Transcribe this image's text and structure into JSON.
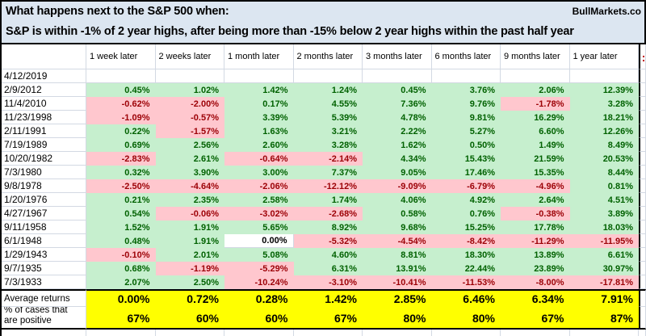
{
  "header": {
    "line1": "What happens next to the S&P 500 when:",
    "line2": "S&P is within -1% of 2 year highs, after being more than -15% below 2 year highs within the past half year",
    "brand": "BullMarkets.co"
  },
  "table": {
    "columns": [
      "1 week later",
      "2 weeks later",
      "1 month later",
      "2 months later",
      "3 months later",
      "6 months later",
      "9 months later",
      "1 year later"
    ],
    "current_row": {
      "date": "4/12/2019",
      "values": [
        "",
        "",
        "",
        "",
        "",
        "",
        "",
        ""
      ]
    },
    "rows": [
      {
        "date": "2/9/2012",
        "values": [
          "0.45%",
          "1.02%",
          "1.42%",
          "1.24%",
          "0.45%",
          "3.76%",
          "2.06%",
          "12.39%"
        ]
      },
      {
        "date": "11/4/2010",
        "values": [
          "-0.62%",
          "-2.00%",
          "0.17%",
          "4.55%",
          "7.36%",
          "9.76%",
          "-1.78%",
          "3.28%"
        ]
      },
      {
        "date": "11/23/1998",
        "values": [
          "-1.09%",
          "-0.57%",
          "3.39%",
          "5.39%",
          "4.78%",
          "9.81%",
          "16.29%",
          "18.21%"
        ]
      },
      {
        "date": "2/11/1991",
        "values": [
          "0.22%",
          "-1.57%",
          "1.63%",
          "3.21%",
          "2.22%",
          "5.27%",
          "6.60%",
          "12.26%"
        ]
      },
      {
        "date": "7/19/1989",
        "values": [
          "0.69%",
          "2.56%",
          "2.60%",
          "3.28%",
          "1.62%",
          "0.50%",
          "1.49%",
          "8.49%"
        ]
      },
      {
        "date": "10/20/1982",
        "values": [
          "-2.83%",
          "2.61%",
          "-0.64%",
          "-2.14%",
          "4.34%",
          "15.43%",
          "21.59%",
          "20.53%"
        ]
      },
      {
        "date": "7/3/1980",
        "values": [
          "0.32%",
          "3.90%",
          "3.00%",
          "7.37%",
          "9.05%",
          "17.46%",
          "15.35%",
          "8.44%"
        ]
      },
      {
        "date": "9/8/1978",
        "values": [
          "-2.50%",
          "-4.64%",
          "-2.06%",
          "-12.12%",
          "-9.09%",
          "-6.79%",
          "-4.96%",
          "0.81%"
        ]
      },
      {
        "date": "1/20/1976",
        "values": [
          "0.21%",
          "2.35%",
          "2.58%",
          "1.74%",
          "4.06%",
          "4.92%",
          "2.64%",
          "4.51%"
        ]
      },
      {
        "date": "4/27/1967",
        "values": [
          "0.54%",
          "-0.06%",
          "-3.02%",
          "-2.68%",
          "0.58%",
          "0.76%",
          "-0.38%",
          "3.89%"
        ]
      },
      {
        "date": "9/11/1958",
        "values": [
          "1.52%",
          "1.91%",
          "5.65%",
          "8.92%",
          "9.68%",
          "15.25%",
          "17.78%",
          "18.03%"
        ]
      },
      {
        "date": "6/1/1948",
        "values": [
          "0.48%",
          "1.91%",
          "0.00%",
          "-5.32%",
          "-4.54%",
          "-8.42%",
          "-11.29%",
          "-11.95%"
        ]
      },
      {
        "date": "1/29/1943",
        "values": [
          "-0.10%",
          "2.01%",
          "5.08%",
          "4.60%",
          "8.81%",
          "18.30%",
          "13.89%",
          "6.61%"
        ]
      },
      {
        "date": "9/7/1935",
        "values": [
          "0.68%",
          "-1.19%",
          "-5.29%",
          "6.31%",
          "13.91%",
          "22.44%",
          "23.89%",
          "30.97%"
        ]
      },
      {
        "date": "7/3/1933",
        "values": [
          "2.07%",
          "2.50%",
          "-10.24%",
          "-3.10%",
          "-10.41%",
          "-11.53%",
          "-8.00%",
          "-17.81%"
        ]
      }
    ],
    "summary": {
      "avg_label": "Average returns",
      "avg_values": [
        "0.00%",
        "0.72%",
        "0.28%",
        "1.42%",
        "2.85%",
        "6.46%",
        "6.34%",
        "7.91%"
      ],
      "pct_label_line1": "% of cases that",
      "pct_label_line2": "are positive",
      "pct_values": [
        "67%",
        "60%",
        "60%",
        "67%",
        "80%",
        "80%",
        "67%",
        "87%"
      ]
    }
  },
  "colors": {
    "header_bg": "#dce6f1",
    "green_bg": "#c6efce",
    "green_text": "#006100",
    "red_bg": "#ffc7ce",
    "red_text": "#9c0006",
    "yellow_bg": "#ffff00",
    "gridline": "#d3d9e3"
  }
}
